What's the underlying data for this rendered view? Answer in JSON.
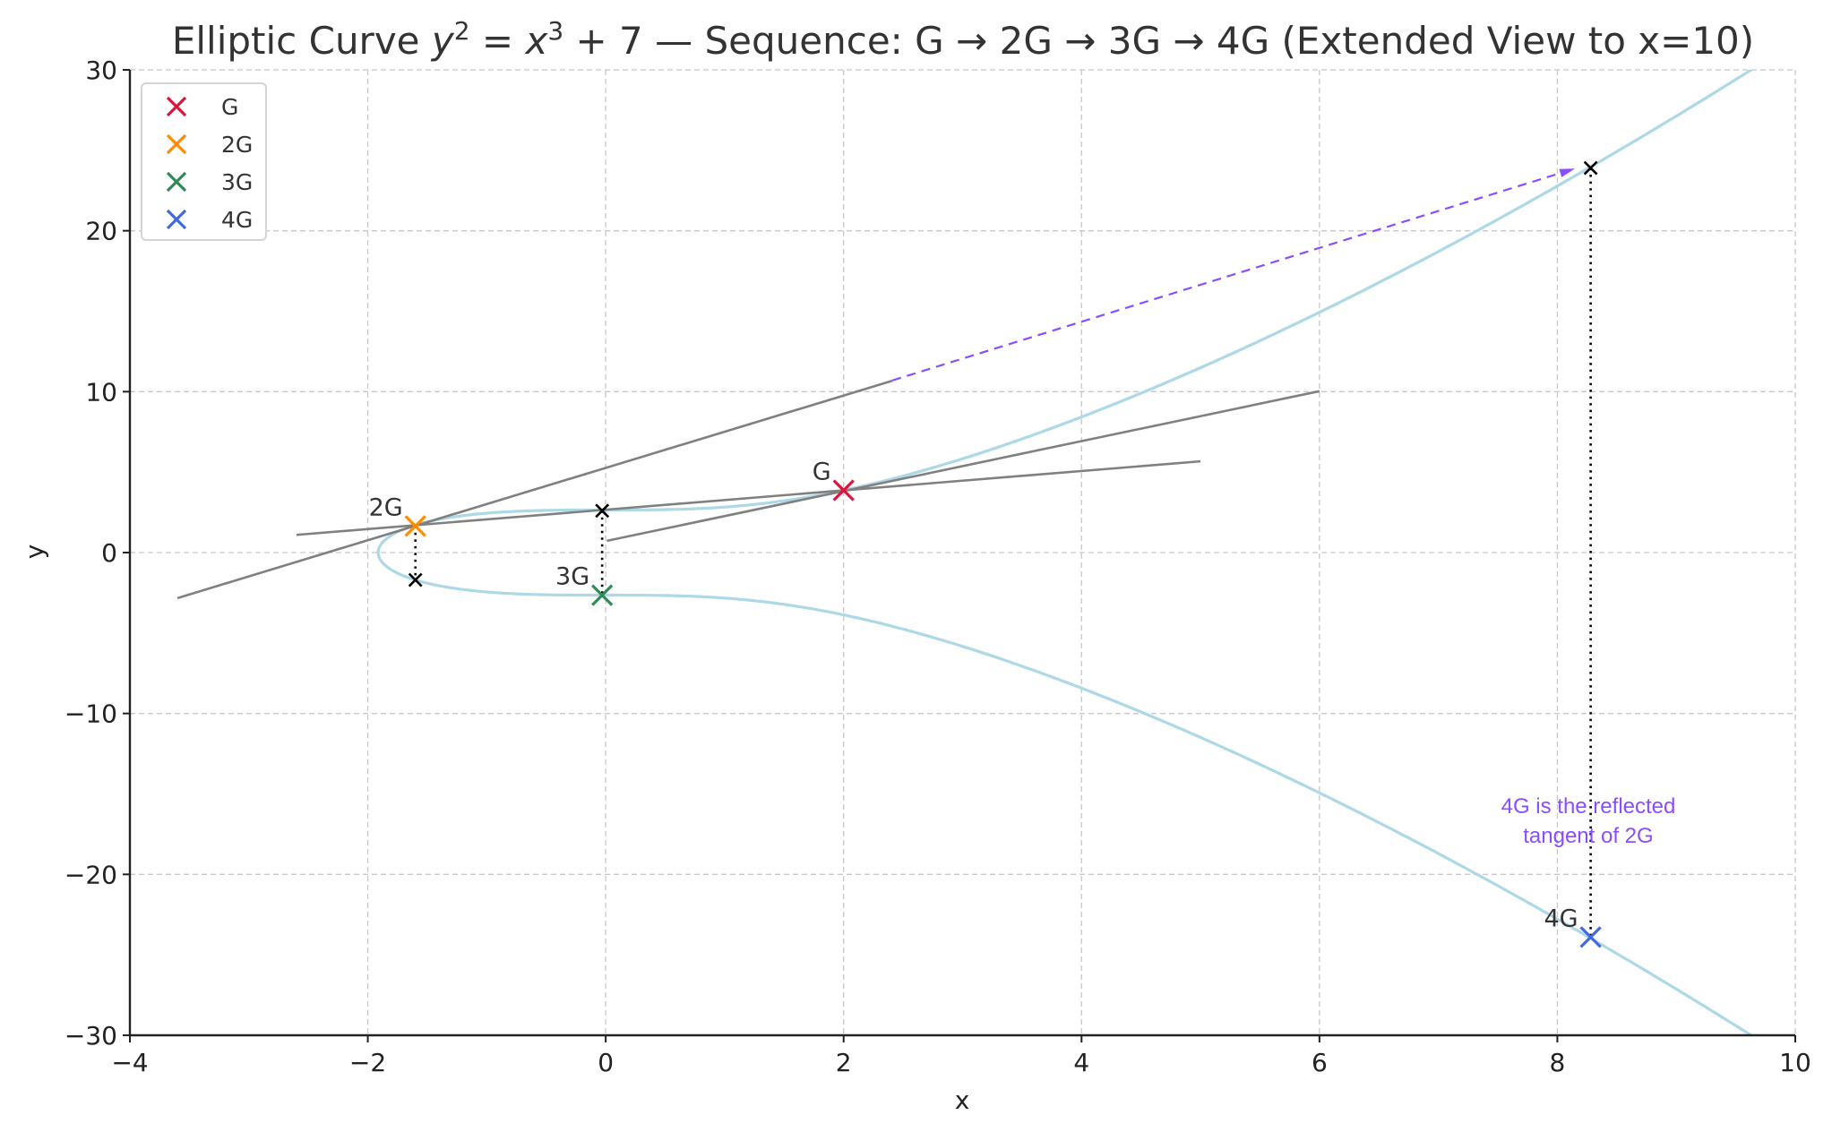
{
  "chart_data": {
    "type": "line",
    "title_prefix": "Elliptic Curve ",
    "title_math": {
      "lhs_base": "y",
      "lhs_exp": "2",
      "eq": " = ",
      "rhs_base": "x",
      "rhs_exp": "3",
      "rhs_tail": " + 7"
    },
    "title_suffix": " — Sequence: G → 2G → 3G → 4G (Extended View to x=10)",
    "xlabel": "x",
    "ylabel": "y",
    "xlim": [
      -4,
      10
    ],
    "ylim": [
      -30,
      30
    ],
    "xticks": [
      -4,
      -2,
      0,
      2,
      4,
      6,
      8,
      10
    ],
    "yticks": [
      -30,
      -20,
      -10,
      0,
      10,
      20,
      30
    ],
    "xtick_labels": [
      "−4",
      "−2",
      "0",
      "2",
      "4",
      "6",
      "8",
      "10"
    ],
    "ytick_labels": [
      "−30",
      "−20",
      "−10",
      "0",
      "10",
      "20",
      "30"
    ],
    "grid": true,
    "curve": {
      "equation": "y^2 = x^3 + 7",
      "color": "#add8e6"
    },
    "points": [
      {
        "name": "G",
        "x": 2.0,
        "y": 3.87,
        "color": "#dc143c"
      },
      {
        "name": "2G",
        "x": -1.6,
        "y": 1.65,
        "color": "#ff8c00"
      },
      {
        "name": "3G",
        "x": -0.03,
        "y": -2.65,
        "color": "#2e8b57"
      },
      {
        "name": "4G",
        "x": 8.28,
        "y": -23.9,
        "color": "#4169e1"
      }
    ],
    "intersection_markers": [
      {
        "x": -0.03,
        "y": 2.6
      },
      {
        "x": -1.6,
        "y": -1.7
      },
      {
        "x": 8.28,
        "y": 23.9
      }
    ],
    "lines": [
      {
        "x": [
          -2.6,
          5.0
        ],
        "y": [
          1.1,
          5.67
        ],
        "color": "#808080"
      },
      {
        "x": [
          -3.6,
          2.41
        ],
        "y": [
          -2.83,
          10.68
        ],
        "color": "#808080"
      },
      {
        "x": [
          0.01,
          6.0
        ],
        "y": [
          0.73,
          10.03
        ],
        "color": "#808080"
      }
    ],
    "arrow": {
      "x": [
        2.41,
        8.12
      ],
      "y": [
        10.7,
        23.8
      ],
      "color": "#8a4dff"
    },
    "reflections": [
      {
        "x": -1.6,
        "y": [
          1.65,
          -1.7
        ]
      },
      {
        "x": -0.03,
        "y": [
          2.6,
          -2.65
        ]
      },
      {
        "x": 8.28,
        "y": [
          23.9,
          -23.9
        ]
      }
    ],
    "annotation": {
      "lines": [
        "4G is the reflected",
        "tangent of 2G"
      ],
      "x": 8.2,
      "y": -16.2
    },
    "legend": {
      "placement": "top-left",
      "entries": [
        "G",
        "2G",
        "3G",
        "4G"
      ]
    }
  }
}
